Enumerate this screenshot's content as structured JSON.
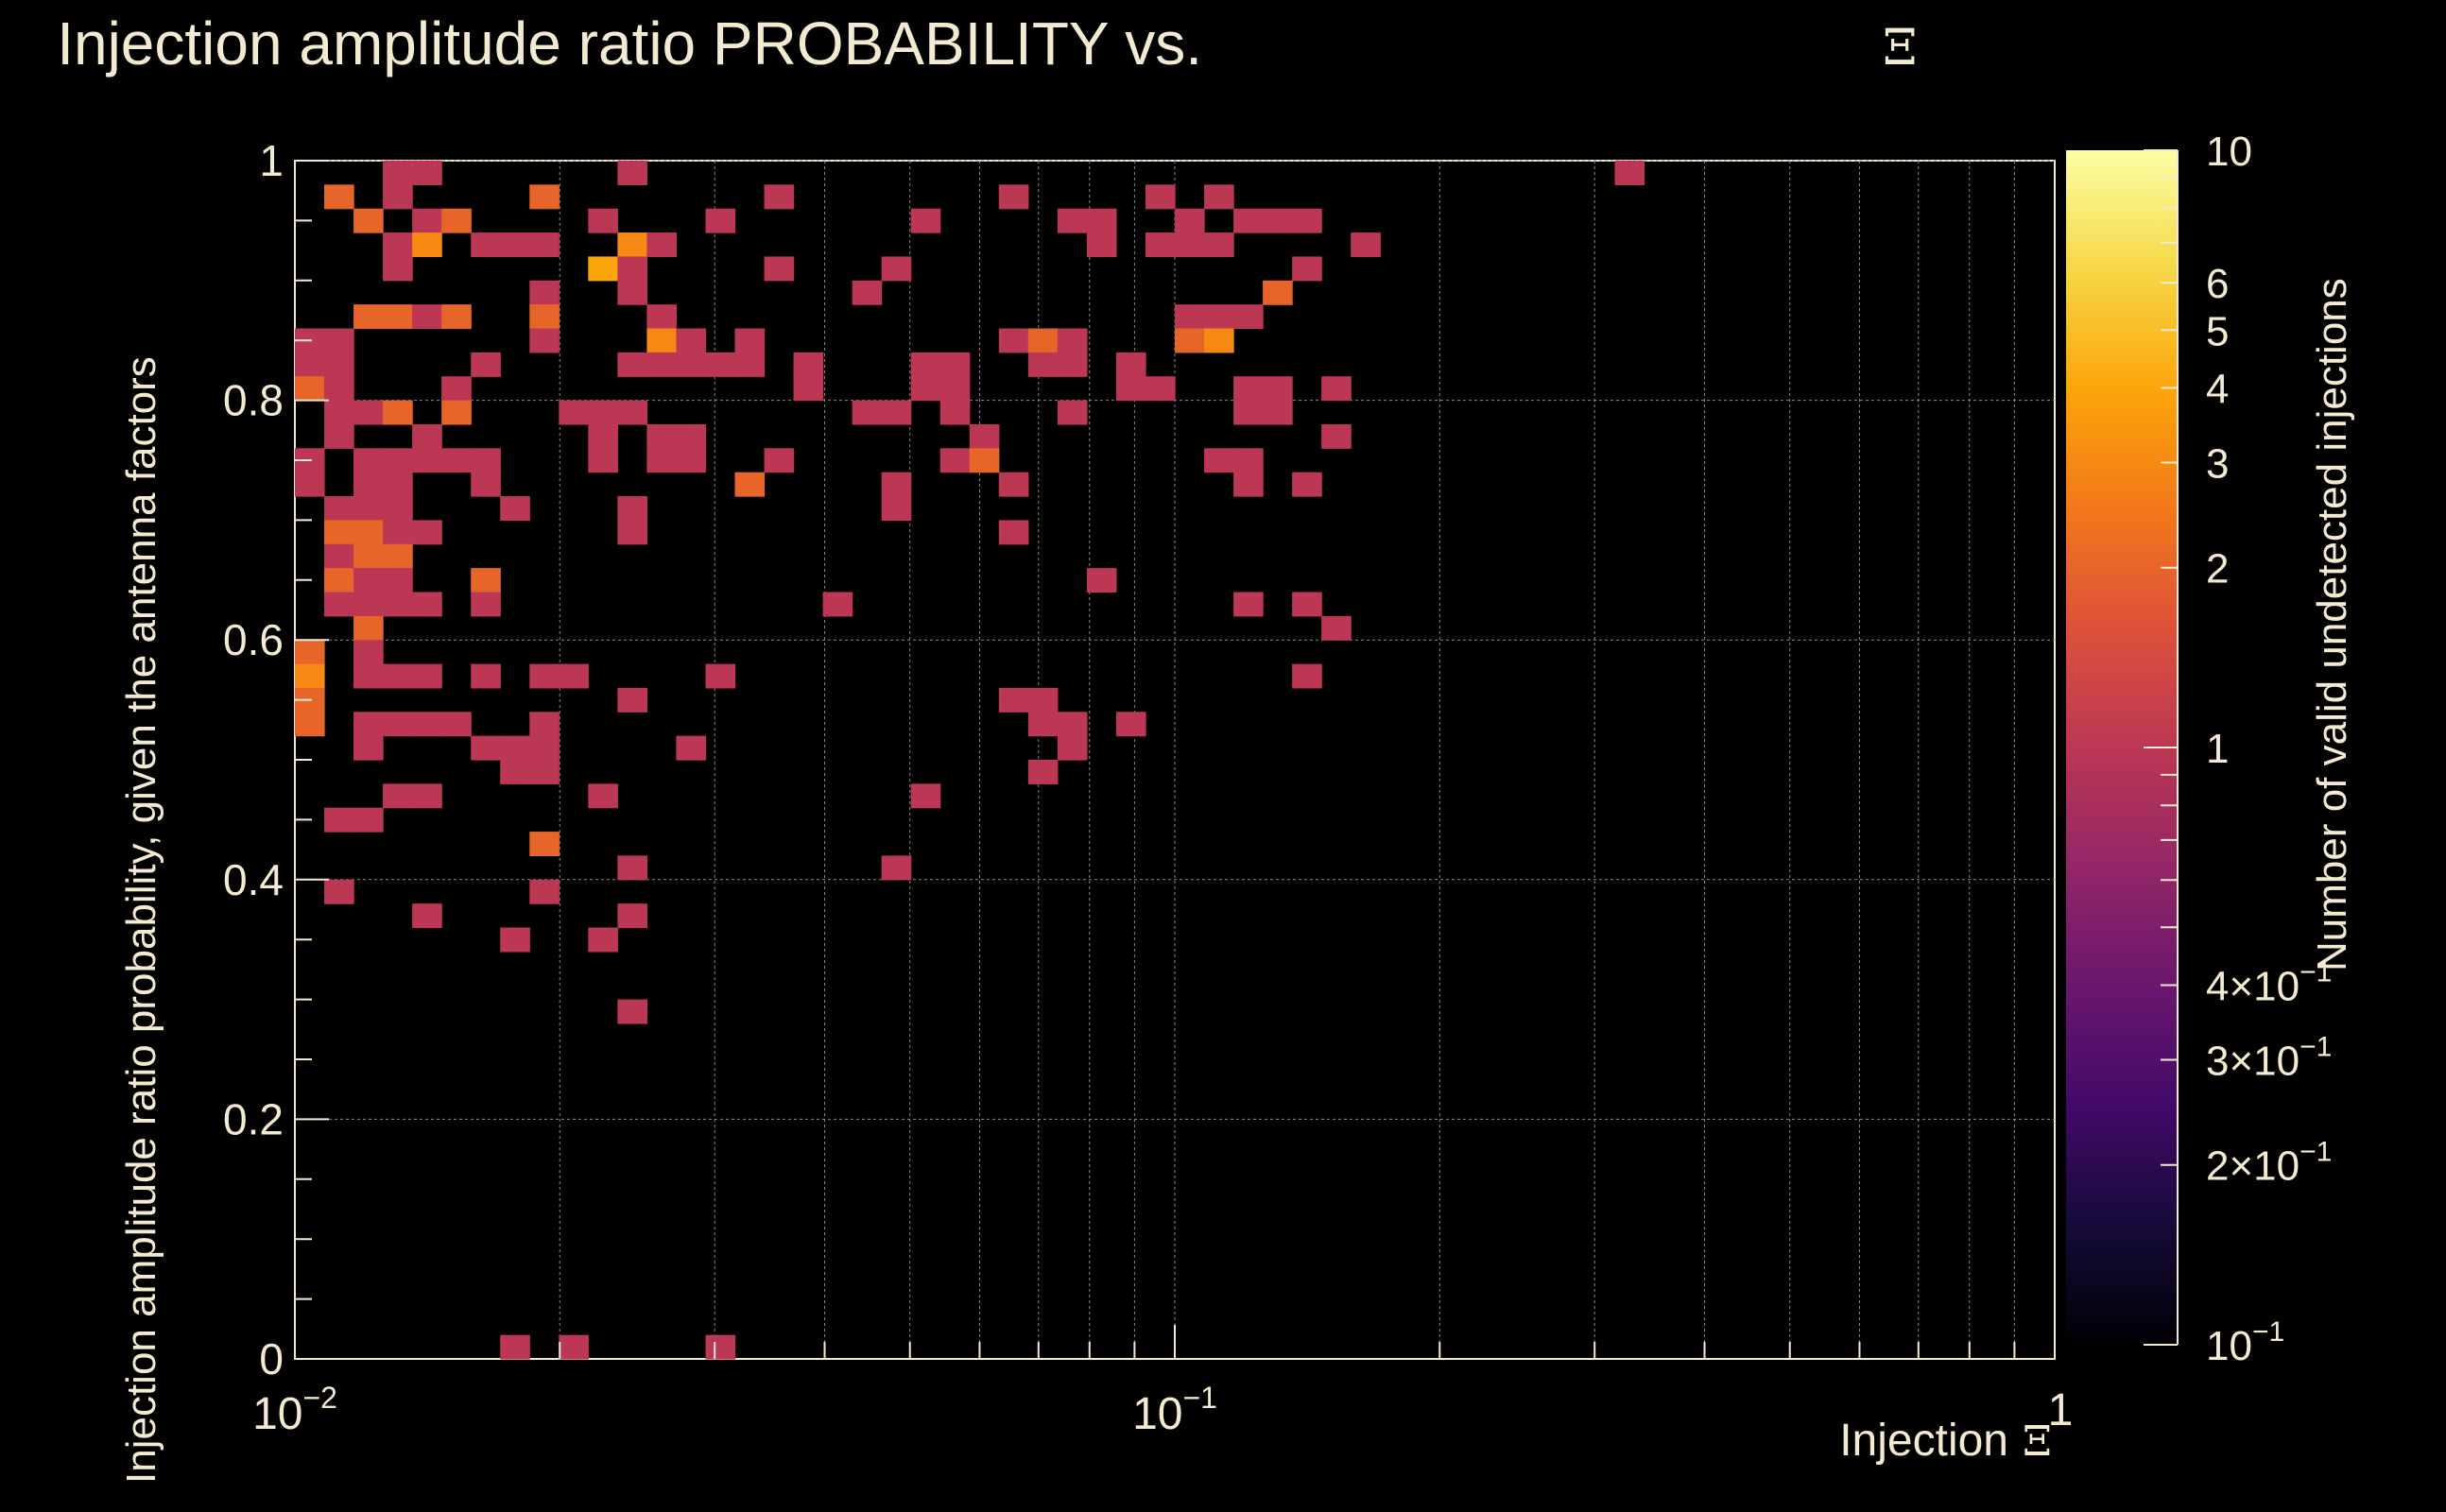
{
  "chart_data": {
    "type": "heatmap",
    "title": "Injection amplitude ratio PROBABILITY vs.",
    "title_symbol": "Ξ",
    "xlabel": "Injection",
    "xlabel_symbol": "Ξ",
    "ylabel": "Injection amplitude ratio probability, given the antenna factors",
    "zlabel": "Number of valid undetected injections",
    "x_scale": "log",
    "xlim": [
      0.01,
      1
    ],
    "ylim": [
      0,
      1
    ],
    "z_scale": "log",
    "zlim": [
      0.1,
      10
    ],
    "grid": true,
    "x_bins": 60,
    "y_bins": 50,
    "x_tick_labels": [
      {
        "value": 0.01,
        "base": "10",
        "exp": "−2"
      },
      {
        "value": 0.1,
        "base": "10",
        "exp": "−1"
      },
      {
        "value": 1,
        "base": "1",
        "exp": ""
      }
    ],
    "y_tick_labels": [
      {
        "value": 0,
        "label": "0"
      },
      {
        "value": 0.2,
        "label": "0.2"
      },
      {
        "value": 0.4,
        "label": "0.4"
      },
      {
        "value": 0.6,
        "label": "0.6"
      },
      {
        "value": 0.8,
        "label": "0.8"
      },
      {
        "value": 1,
        "label": "1"
      }
    ],
    "z_tick_labels": [
      {
        "value": 10,
        "mant": "10",
        "exp": ""
      },
      {
        "value": 6,
        "mant": "6",
        "exp": ""
      },
      {
        "value": 5,
        "mant": "5",
        "exp": ""
      },
      {
        "value": 4,
        "mant": "4",
        "exp": ""
      },
      {
        "value": 3,
        "mant": "3",
        "exp": ""
      },
      {
        "value": 2,
        "mant": "2",
        "exp": ""
      },
      {
        "value": 1,
        "mant": "1",
        "exp": ""
      },
      {
        "value": 0.4,
        "mant": "4×10",
        "exp": "−1"
      },
      {
        "value": 0.3,
        "mant": "3×10",
        "exp": "−1"
      },
      {
        "value": 0.2,
        "mant": "2×10",
        "exp": "−1"
      },
      {
        "value": 0.1,
        "mant": "10",
        "exp": "−1"
      }
    ],
    "colormap": [
      "#000004",
      "#160b39",
      "#420a68",
      "#6a176e",
      "#932667",
      "#bc3754",
      "#dd513a",
      "#f37819",
      "#fca50a",
      "#f6d746",
      "#fcffa4"
    ],
    "cells": [
      [
        3,
        49,
        1
      ],
      [
        4,
        49,
        1
      ],
      [
        11,
        49,
        1
      ],
      [
        45,
        49,
        1
      ],
      [
        1,
        48,
        2
      ],
      [
        3,
        48,
        1
      ],
      [
        8,
        48,
        2
      ],
      [
        16,
        48,
        1
      ],
      [
        24,
        48,
        1
      ],
      [
        29,
        48,
        1
      ],
      [
        31,
        48,
        1
      ],
      [
        2,
        47,
        2
      ],
      [
        4,
        47,
        1
      ],
      [
        5,
        47,
        2
      ],
      [
        10,
        47,
        1
      ],
      [
        14,
        47,
        1
      ],
      [
        21,
        47,
        1
      ],
      [
        26,
        47,
        1
      ],
      [
        27,
        47,
        1
      ],
      [
        30,
        47,
        1
      ],
      [
        32,
        47,
        1
      ],
      [
        33,
        47,
        1
      ],
      [
        34,
        47,
        1
      ],
      [
        3,
        46,
        1
      ],
      [
        4,
        46,
        3
      ],
      [
        6,
        46,
        1
      ],
      [
        7,
        46,
        1
      ],
      [
        8,
        46,
        1
      ],
      [
        11,
        46,
        3
      ],
      [
        12,
        46,
        1
      ],
      [
        27,
        46,
        1
      ],
      [
        29,
        46,
        1
      ],
      [
        30,
        46,
        1
      ],
      [
        31,
        46,
        1
      ],
      [
        36,
        46,
        1
      ],
      [
        3,
        45,
        1
      ],
      [
        10,
        45,
        4
      ],
      [
        11,
        45,
        1
      ],
      [
        16,
        45,
        1
      ],
      [
        20,
        45,
        1
      ],
      [
        34,
        45,
        1
      ],
      [
        8,
        44,
        1
      ],
      [
        11,
        44,
        1
      ],
      [
        19,
        44,
        1
      ],
      [
        33,
        44,
        2
      ],
      [
        2,
        43,
        2
      ],
      [
        3,
        43,
        2
      ],
      [
        4,
        43,
        1
      ],
      [
        5,
        43,
        2
      ],
      [
        8,
        43,
        2
      ],
      [
        12,
        43,
        1
      ],
      [
        30,
        43,
        1
      ],
      [
        31,
        43,
        1
      ],
      [
        32,
        43,
        1
      ],
      [
        0,
        42,
        1
      ],
      [
        1,
        42,
        1
      ],
      [
        8,
        42,
        1
      ],
      [
        12,
        42,
        3
      ],
      [
        13,
        42,
        1
      ],
      [
        15,
        42,
        1
      ],
      [
        24,
        42,
        1
      ],
      [
        25,
        42,
        2
      ],
      [
        26,
        42,
        1
      ],
      [
        30,
        42,
        2
      ],
      [
        31,
        42,
        3
      ],
      [
        0,
        41,
        1
      ],
      [
        1,
        41,
        1
      ],
      [
        6,
        41,
        1
      ],
      [
        11,
        41,
        1
      ],
      [
        12,
        41,
        1
      ],
      [
        13,
        41,
        1
      ],
      [
        14,
        41,
        1
      ],
      [
        15,
        41,
        1
      ],
      [
        17,
        41,
        1
      ],
      [
        21,
        41,
        1
      ],
      [
        22,
        41,
        1
      ],
      [
        25,
        41,
        1
      ],
      [
        26,
        41,
        1
      ],
      [
        28,
        41,
        1
      ],
      [
        0,
        40,
        2
      ],
      [
        1,
        40,
        1
      ],
      [
        5,
        40,
        1
      ],
      [
        17,
        40,
        1
      ],
      [
        21,
        40,
        1
      ],
      [
        22,
        40,
        1
      ],
      [
        28,
        40,
        1
      ],
      [
        29,
        40,
        1
      ],
      [
        32,
        40,
        1
      ],
      [
        33,
        40,
        1
      ],
      [
        35,
        40,
        1
      ],
      [
        1,
        39,
        1
      ],
      [
        2,
        39,
        1
      ],
      [
        3,
        39,
        2
      ],
      [
        5,
        39,
        2
      ],
      [
        9,
        39,
        1
      ],
      [
        10,
        39,
        1
      ],
      [
        11,
        39,
        1
      ],
      [
        19,
        39,
        1
      ],
      [
        20,
        39,
        1
      ],
      [
        22,
        39,
        1
      ],
      [
        26,
        39,
        1
      ],
      [
        32,
        39,
        1
      ],
      [
        33,
        39,
        1
      ],
      [
        1,
        38,
        1
      ],
      [
        4,
        38,
        1
      ],
      [
        10,
        38,
        1
      ],
      [
        12,
        38,
        1
      ],
      [
        13,
        38,
        1
      ],
      [
        23,
        38,
        1
      ],
      [
        35,
        38,
        1
      ],
      [
        0,
        37,
        1
      ],
      [
        2,
        37,
        1
      ],
      [
        3,
        37,
        1
      ],
      [
        4,
        37,
        1
      ],
      [
        5,
        37,
        1
      ],
      [
        6,
        37,
        1
      ],
      [
        10,
        37,
        1
      ],
      [
        12,
        37,
        1
      ],
      [
        13,
        37,
        1
      ],
      [
        16,
        37,
        1
      ],
      [
        22,
        37,
        1
      ],
      [
        23,
        37,
        2
      ],
      [
        31,
        37,
        1
      ],
      [
        32,
        37,
        1
      ],
      [
        0,
        36,
        1
      ],
      [
        2,
        36,
        1
      ],
      [
        3,
        36,
        1
      ],
      [
        6,
        36,
        1
      ],
      [
        15,
        36,
        2
      ],
      [
        20,
        36,
        1
      ],
      [
        24,
        36,
        1
      ],
      [
        32,
        36,
        1
      ],
      [
        34,
        36,
        1
      ],
      [
        1,
        35,
        1
      ],
      [
        2,
        35,
        1
      ],
      [
        3,
        35,
        1
      ],
      [
        7,
        35,
        1
      ],
      [
        11,
        35,
        1
      ],
      [
        20,
        35,
        1
      ],
      [
        1,
        34,
        2
      ],
      [
        2,
        34,
        2
      ],
      [
        3,
        34,
        1
      ],
      [
        4,
        34,
        1
      ],
      [
        11,
        34,
        1
      ],
      [
        24,
        34,
        1
      ],
      [
        1,
        33,
        1
      ],
      [
        2,
        33,
        2
      ],
      [
        3,
        33,
        2
      ],
      [
        1,
        32,
        2
      ],
      [
        2,
        32,
        1
      ],
      [
        3,
        32,
        1
      ],
      [
        6,
        32,
        2
      ],
      [
        27,
        32,
        1
      ],
      [
        1,
        31,
        1
      ],
      [
        2,
        31,
        1
      ],
      [
        3,
        31,
        1
      ],
      [
        4,
        31,
        1
      ],
      [
        6,
        31,
        1
      ],
      [
        18,
        31,
        1
      ],
      [
        32,
        31,
        1
      ],
      [
        34,
        31,
        1
      ],
      [
        2,
        30,
        2
      ],
      [
        35,
        30,
        1
      ],
      [
        0,
        29,
        2
      ],
      [
        2,
        29,
        1
      ],
      [
        0,
        28,
        3
      ],
      [
        2,
        28,
        1
      ],
      [
        3,
        28,
        1
      ],
      [
        4,
        28,
        1
      ],
      [
        6,
        28,
        1
      ],
      [
        8,
        28,
        1
      ],
      [
        9,
        28,
        1
      ],
      [
        14,
        28,
        1
      ],
      [
        34,
        28,
        1
      ],
      [
        0,
        27,
        2
      ],
      [
        11,
        27,
        1
      ],
      [
        24,
        27,
        1
      ],
      [
        25,
        27,
        1
      ],
      [
        0,
        26,
        2
      ],
      [
        2,
        26,
        1
      ],
      [
        3,
        26,
        1
      ],
      [
        4,
        26,
        1
      ],
      [
        5,
        26,
        1
      ],
      [
        8,
        26,
        1
      ],
      [
        25,
        26,
        1
      ],
      [
        26,
        26,
        1
      ],
      [
        28,
        26,
        1
      ],
      [
        2,
        25,
        1
      ],
      [
        6,
        25,
        1
      ],
      [
        7,
        25,
        1
      ],
      [
        8,
        25,
        1
      ],
      [
        13,
        25,
        1
      ],
      [
        26,
        25,
        1
      ],
      [
        7,
        24,
        1
      ],
      [
        8,
        24,
        1
      ],
      [
        25,
        24,
        1
      ],
      [
        3,
        23,
        1
      ],
      [
        4,
        23,
        1
      ],
      [
        10,
        23,
        1
      ],
      [
        21,
        23,
        1
      ],
      [
        1,
        22,
        1
      ],
      [
        2,
        22,
        1
      ],
      [
        8,
        21,
        2
      ],
      [
        11,
        20,
        1
      ],
      [
        20,
        20,
        1
      ],
      [
        1,
        19,
        1
      ],
      [
        8,
        19,
        1
      ],
      [
        4,
        18,
        1
      ],
      [
        11,
        18,
        1
      ],
      [
        7,
        17,
        1
      ],
      [
        10,
        17,
        1
      ],
      [
        11,
        14,
        1
      ],
      [
        7,
        0,
        1
      ],
      [
        9,
        0,
        1
      ],
      [
        14,
        0,
        1
      ]
    ]
  }
}
